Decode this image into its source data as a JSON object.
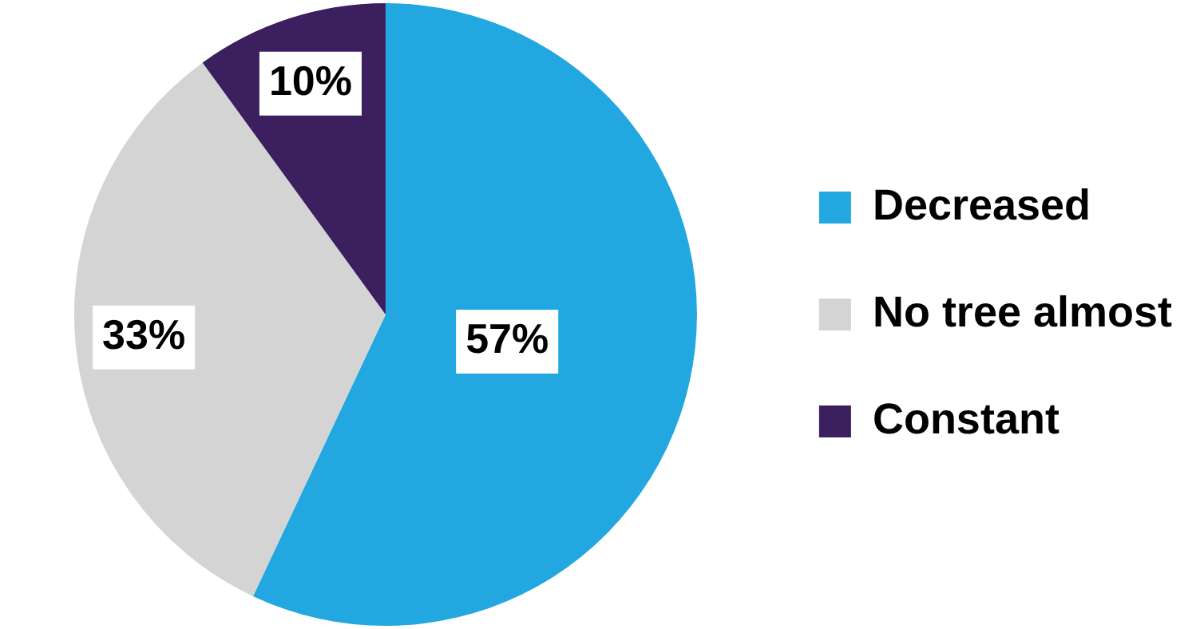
{
  "chart_data": {
    "type": "pie",
    "categories": [
      "Decreased",
      "No tree almost",
      "Constant"
    ],
    "values": [
      57,
      33,
      10
    ],
    "colors": [
      "#22a7e0",
      "#d4d4d4",
      "#3b1f5e"
    ],
    "value_labels": [
      "57%",
      "33%",
      "10%"
    ],
    "legend": "right"
  }
}
